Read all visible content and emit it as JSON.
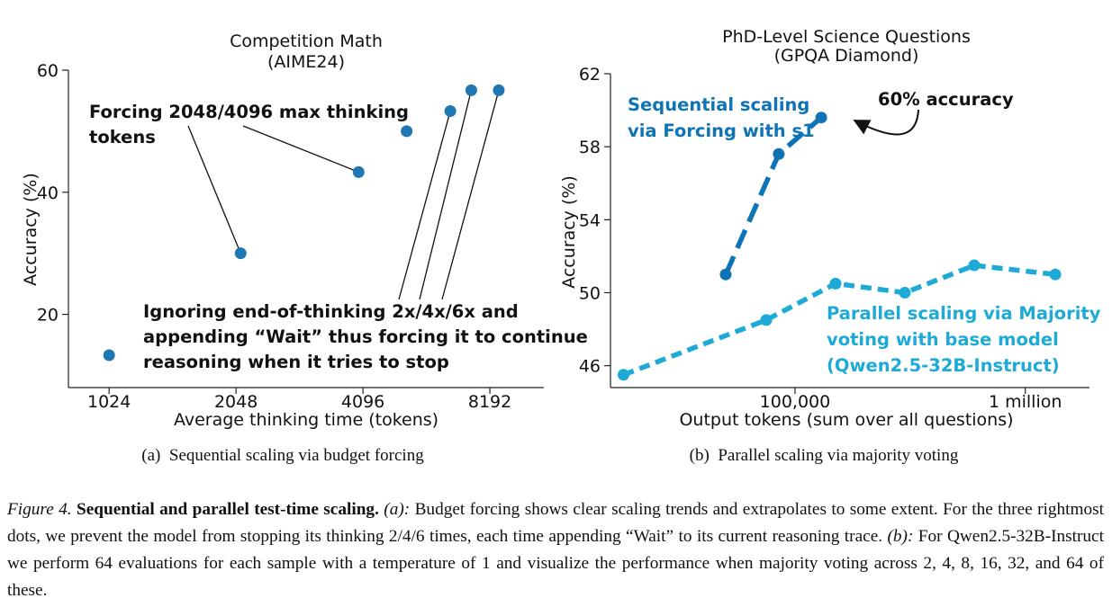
{
  "chart_data": [
    {
      "type": "scatter",
      "title": "Competition Math",
      "subtitle": "(AIME24)",
      "xlabel": "Average thinking time (tokens)",
      "ylabel": "Accuracy (%)",
      "xscale": "log2",
      "xlim": [
        820,
        11000
      ],
      "ylim": [
        8,
        60
      ],
      "xticks": [
        1024,
        2048,
        4096,
        8192
      ],
      "xtick_labels": [
        "1024",
        "2048",
        "4096",
        "8192"
      ],
      "yticks": [
        20,
        40,
        60
      ],
      "ytick_labels": [
        "20",
        "40",
        "60"
      ],
      "color": "#1f77b4",
      "points": [
        {
          "x": 1024,
          "y": 13.3
        },
        {
          "x": 2100,
          "y": 30.0
        },
        {
          "x": 4000,
          "y": 43.3
        },
        {
          "x": 5200,
          "y": 50.0
        },
        {
          "x": 6600,
          "y": 53.3
        },
        {
          "x": 7400,
          "y": 56.7
        },
        {
          "x": 8600,
          "y": 56.7
        }
      ],
      "annotations": [
        {
          "lines": [
            "Forcing 2048/4096 max thinking",
            "tokens"
          ],
          "points": [
            1,
            2
          ]
        },
        {
          "lines": [
            "Ignoring end-of-thinking 2x/4x/6x and",
            "appending “Wait” thus forcing it to continue",
            "reasoning when it tries to stop"
          ],
          "points": [
            4,
            5,
            6
          ]
        }
      ],
      "panel_caption": "(a)  Sequential scaling via budget forcing"
    },
    {
      "type": "line",
      "title": "PhD-Level Science Questions",
      "subtitle": "(GPQA Diamond)",
      "xlabel": "Output tokens (sum over all questions)",
      "ylabel": "Accuracy (%)",
      "xscale": "log10",
      "xlim": [
        15800,
        1900000
      ],
      "ylim": [
        44.8,
        62
      ],
      "xticks": [
        100000,
        1000000
      ],
      "xtick_labels": [
        "100,000",
        "1 million"
      ],
      "yticks": [
        46,
        50,
        54,
        58,
        62
      ],
      "ytick_labels": [
        "46",
        "50",
        "54",
        "58",
        "62"
      ],
      "series": [
        {
          "name": "Sequential scaling via Forcing with s1",
          "label_lines": [
            "Sequential scaling",
            "via Forcing with s1"
          ],
          "color": "#0f74b5",
          "x": [
            50000,
            85000,
            130000
          ],
          "values": [
            51.0,
            57.6,
            59.6
          ]
        },
        {
          "name": "Parallel scaling via Majority voting with base model (Qwen2.5-32B-Instruct)",
          "label_lines": [
            "Parallel scaling via Majority",
            "voting with base model",
            "(Qwen2.5-32B-Instruct)"
          ],
          "color": "#1eaad6",
          "x": [
            18000,
            75000,
            150000,
            300000,
            600000,
            1350000
          ],
          "values": [
            45.5,
            48.5,
            50.5,
            50.0,
            51.5,
            51.0
          ]
        }
      ],
      "callout": "60% accuracy",
      "panel_caption": "(b)  Parallel scaling via majority voting"
    }
  ],
  "caption": {
    "figure_label": "Figure 4.",
    "bold_title": "Sequential and parallel test-time scaling.",
    "part_a_label": "(a):",
    "part_a_text": " Budget forcing shows clear scaling trends and extrapolates to some extent. For the three rightmost dots, we prevent the model from stopping its thinking 2/4/6 times, each time appending “Wait” to its current reasoning trace. ",
    "part_b_label": "(b):",
    "part_b_text": " For Qwen2.5-32B-Instruct we perform 64 evaluations for each sample with a temperature of 1 and visualize the performance when majority voting across 2, 4, 8, 16, 32, and 64 of these."
  }
}
